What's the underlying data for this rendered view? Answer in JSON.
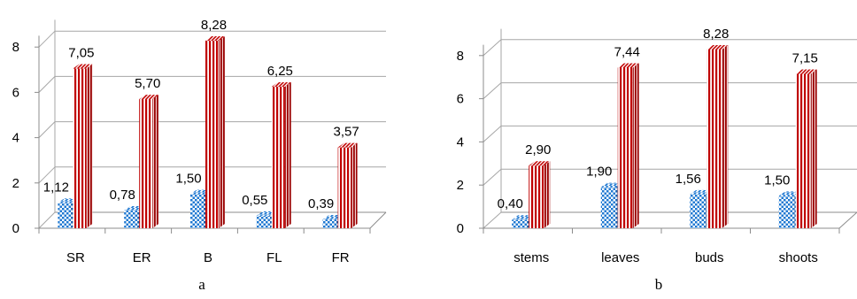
{
  "chart_data": [
    {
      "type": "bar",
      "caption": "a",
      "categories": [
        "SR",
        "ER",
        "B",
        "FL",
        "FR"
      ],
      "series": [
        {
          "values": [
            1.12,
            0.78,
            1.5,
            0.55,
            0.39
          ],
          "labels": [
            "1,12",
            "0,78",
            "1,50",
            "0,55",
            "0,39"
          ],
          "color": "#1f78d1",
          "pattern": "checker"
        },
        {
          "values": [
            7.05,
            5.7,
            8.28,
            6.25,
            3.57
          ],
          "labels": [
            "7,05",
            "5,70",
            "8,28",
            "6,25",
            "3,57"
          ],
          "color": "#c00000",
          "pattern": "vertical-stripes"
        }
      ],
      "yticks": [
        "0",
        "2",
        "4",
        "6",
        "8"
      ],
      "ylim": [
        0,
        8.5
      ],
      "grid": true,
      "style": "3d"
    },
    {
      "type": "bar",
      "caption": "b",
      "categories": [
        "stems",
        "leaves",
        "buds",
        "shoots"
      ],
      "series": [
        {
          "values": [
            0.4,
            1.9,
            1.56,
            1.5
          ],
          "labels": [
            "0,40",
            "1,90",
            "1,56",
            "1,50"
          ],
          "color": "#1f78d1",
          "pattern": "checker"
        },
        {
          "values": [
            2.9,
            7.44,
            8.28,
            7.15
          ],
          "labels": [
            "2,90",
            "7,44",
            "8,28",
            "7,15"
          ],
          "color": "#c00000",
          "pattern": "vertical-stripes"
        }
      ],
      "yticks": [
        "0",
        "2",
        "4",
        "6",
        "8"
      ],
      "ylim": [
        0,
        8.5
      ],
      "grid": true,
      "style": "3d"
    }
  ]
}
